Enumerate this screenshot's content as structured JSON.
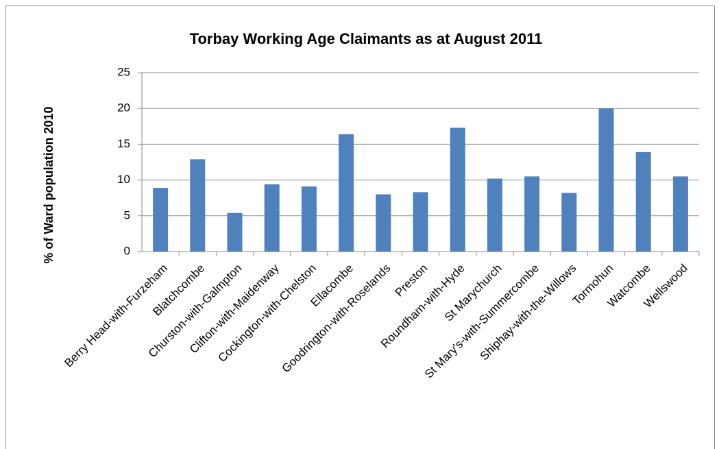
{
  "chart_data": {
    "type": "bar",
    "title": "Torbay Working Age Claimants as at August 2011",
    "y_label": "% of Ward population 2010",
    "categories": [
      "Berry Head-with-Furzeham",
      "Blatchcombe",
      "Churston-with-Galmpton",
      "Clifton-with-Maidenway",
      "Cockington-with-Chelston",
      "Ellacombe",
      "Goodrington-with-Roselands",
      "Preston",
      "Roundham-with-Hyde",
      "St Marychurch",
      "St Mary's-with-Summercombe",
      "Shiphay-with-the-Willows",
      "Tormohun",
      "Watcombe",
      "Wellswood"
    ],
    "values": [
      8.9,
      12.9,
      5.4,
      9.4,
      9.1,
      16.4,
      8.0,
      8.3,
      17.3,
      10.2,
      10.5,
      8.2,
      20.0,
      13.9,
      10.5
    ],
    "color": "#4f81bd",
    "ylim": [
      0,
      25
    ],
    "yticks": [
      0,
      5,
      10,
      15,
      20,
      25
    ],
    "grid": true
  }
}
